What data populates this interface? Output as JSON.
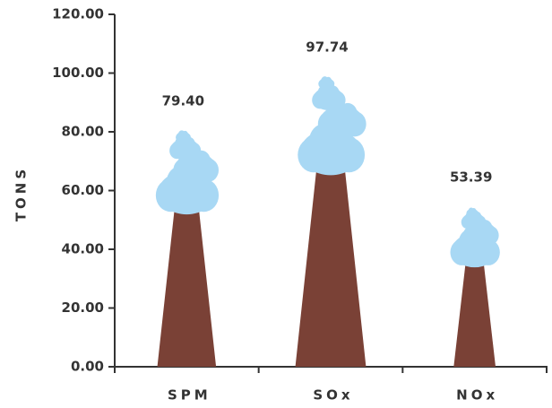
{
  "chart_data": {
    "type": "pictorial-bar",
    "y_axis_label": "TONS",
    "categories": [
      "SPM",
      "SOx",
      "NOx"
    ],
    "values": [
      79.4,
      97.74,
      53.39
    ],
    "value_labels": [
      "79.40",
      "97.74",
      "53.39"
    ],
    "chimney_color": "#7a4136",
    "smoke_color": "#a8d8f4",
    "ylim": [
      0,
      120
    ],
    "yticks": [
      {
        "value": 0,
        "label": "0.00"
      },
      {
        "value": 20,
        "label": "20.00"
      },
      {
        "value": 40,
        "label": "40.00"
      },
      {
        "value": 60,
        "label": "60.00"
      },
      {
        "value": 80,
        "label": "80.00"
      },
      {
        "value": 100,
        "label": "100.00"
      },
      {
        "value": 120,
        "label": "120.00"
      }
    ]
  }
}
